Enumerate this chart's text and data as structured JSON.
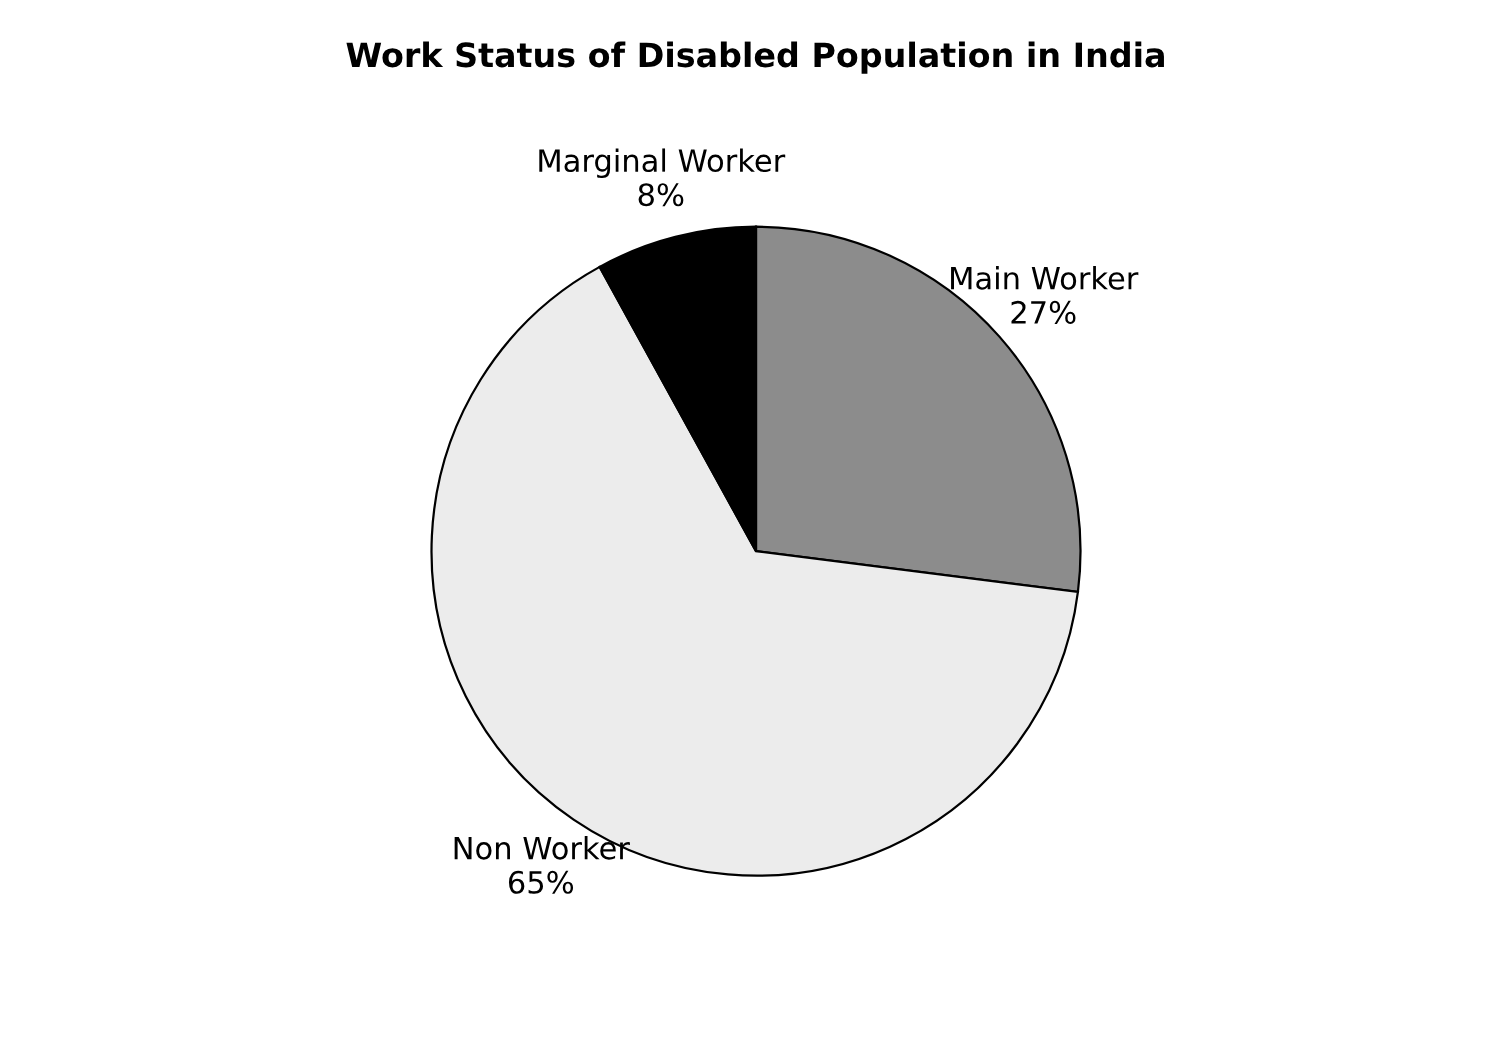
{
  "chart_data": {
    "type": "pie",
    "title": "Work Status of Disabled Population in India",
    "categories": [
      "Main Worker",
      "Non Worker",
      "Marginal Worker"
    ],
    "values": [
      27,
      65,
      8
    ],
    "value_labels": [
      "27%",
      "65%",
      "8%"
    ],
    "colors": [
      "#8c8c8c",
      "#ececec",
      "#000000"
    ],
    "legend": false
  }
}
